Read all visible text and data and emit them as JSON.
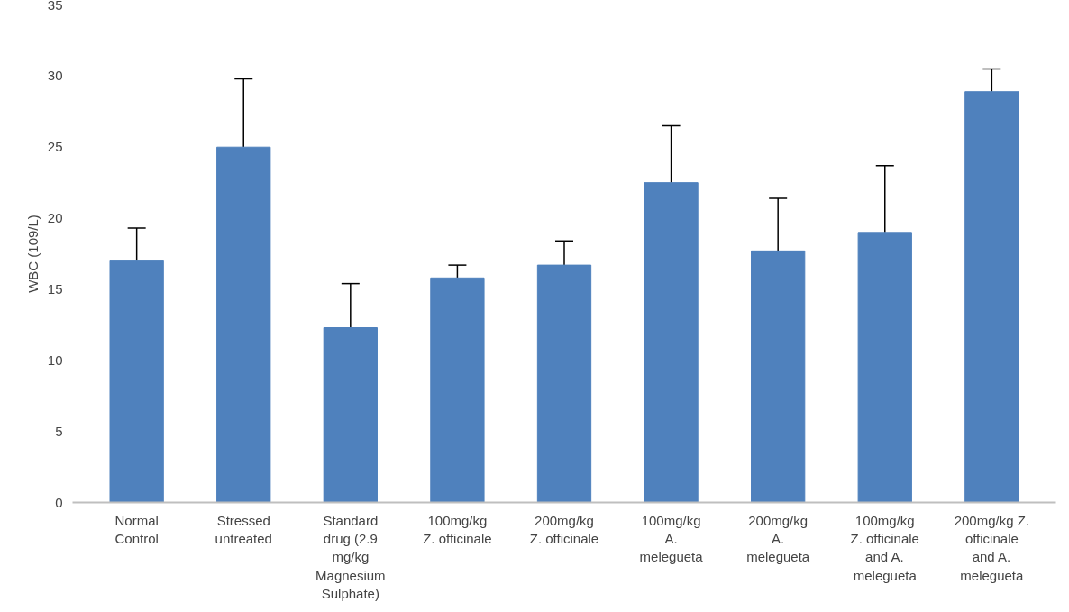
{
  "chart_data": {
    "type": "bar",
    "ylabel": "WBC (109/L)",
    "categories": [
      "Normal\nControl",
      "Stressed\nuntreated",
      "Standard\ndrug (2.9\nmg/kg\nMagnesium\nSulphate)",
      "100mg/kg\nZ. officinale",
      "200mg/kg\nZ. officinale",
      "100mg/kg\nA.\nmelegueta",
      "200mg/kg\nA.\nmelegueta",
      "100mg/kg\nZ. officinale\nand A.\nmelegueta",
      "200mg/kg Z.\nofficinale\nand A.\nmelegueta"
    ],
    "values": [
      17.0,
      25.0,
      12.3,
      15.8,
      16.7,
      22.5,
      17.7,
      19.0,
      28.9
    ],
    "errors": [
      [
        17.0,
        19.3
      ],
      [
        25.0,
        29.8
      ],
      [
        12.3,
        15.4
      ],
      [
        15.8,
        16.7
      ],
      [
        16.7,
        18.4
      ],
      [
        22.5,
        26.5
      ],
      [
        17.7,
        21.4
      ],
      [
        19.0,
        23.7
      ],
      [
        28.9,
        30.5
      ]
    ],
    "color": "#4f81bd",
    "ylim": [
      0,
      35
    ],
    "yticks": [
      0,
      5,
      10,
      15,
      20,
      25,
      30,
      35
    ],
    "grid": false
  }
}
